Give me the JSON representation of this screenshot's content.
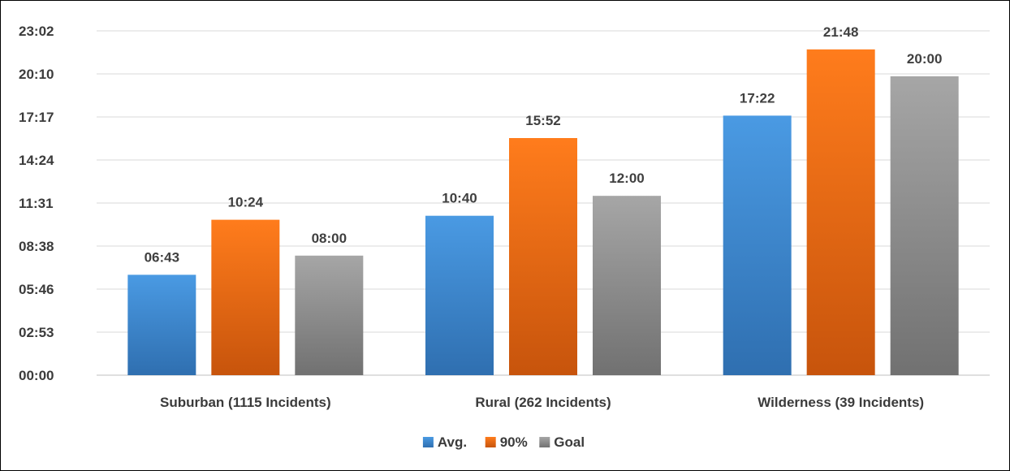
{
  "chart_data": {
    "type": "bar",
    "categories": [
      "Suburban (1115 Incidents)",
      "Rural (262 Incidents)",
      "Wilderness (39 Incidents)"
    ],
    "series": [
      {
        "name": "Avg.",
        "values": [
          6.717,
          10.667,
          17.367
        ],
        "labels": [
          "06:43",
          "10:40",
          "17:22"
        ],
        "color": "#3f8fd8"
      },
      {
        "name": "90%",
        "values": [
          10.4,
          15.867,
          21.8
        ],
        "labels": [
          "10:24",
          "15:52",
          "21:48"
        ],
        "color": "#f0731a"
      },
      {
        "name": "Goal",
        "values": [
          8.0,
          12.0,
          20.0
        ],
        "labels": [
          "08:00",
          "12:00",
          "20:00"
        ],
        "color": "#8f8f8f"
      }
    ],
    "ylim": [
      0,
      23.04
    ],
    "yticks": [
      0,
      2.88,
      5.76,
      8.64,
      11.52,
      14.4,
      17.28,
      20.16,
      23.04
    ],
    "ytick_labels": [
      "00:00",
      "02:53",
      "05:46",
      "08:38",
      "11:31",
      "14:24",
      "17:17",
      "20:10",
      "23:02"
    ],
    "y_units": "minutes (mm:ss)",
    "grid": true,
    "legend_position": "bottom",
    "title": ""
  }
}
